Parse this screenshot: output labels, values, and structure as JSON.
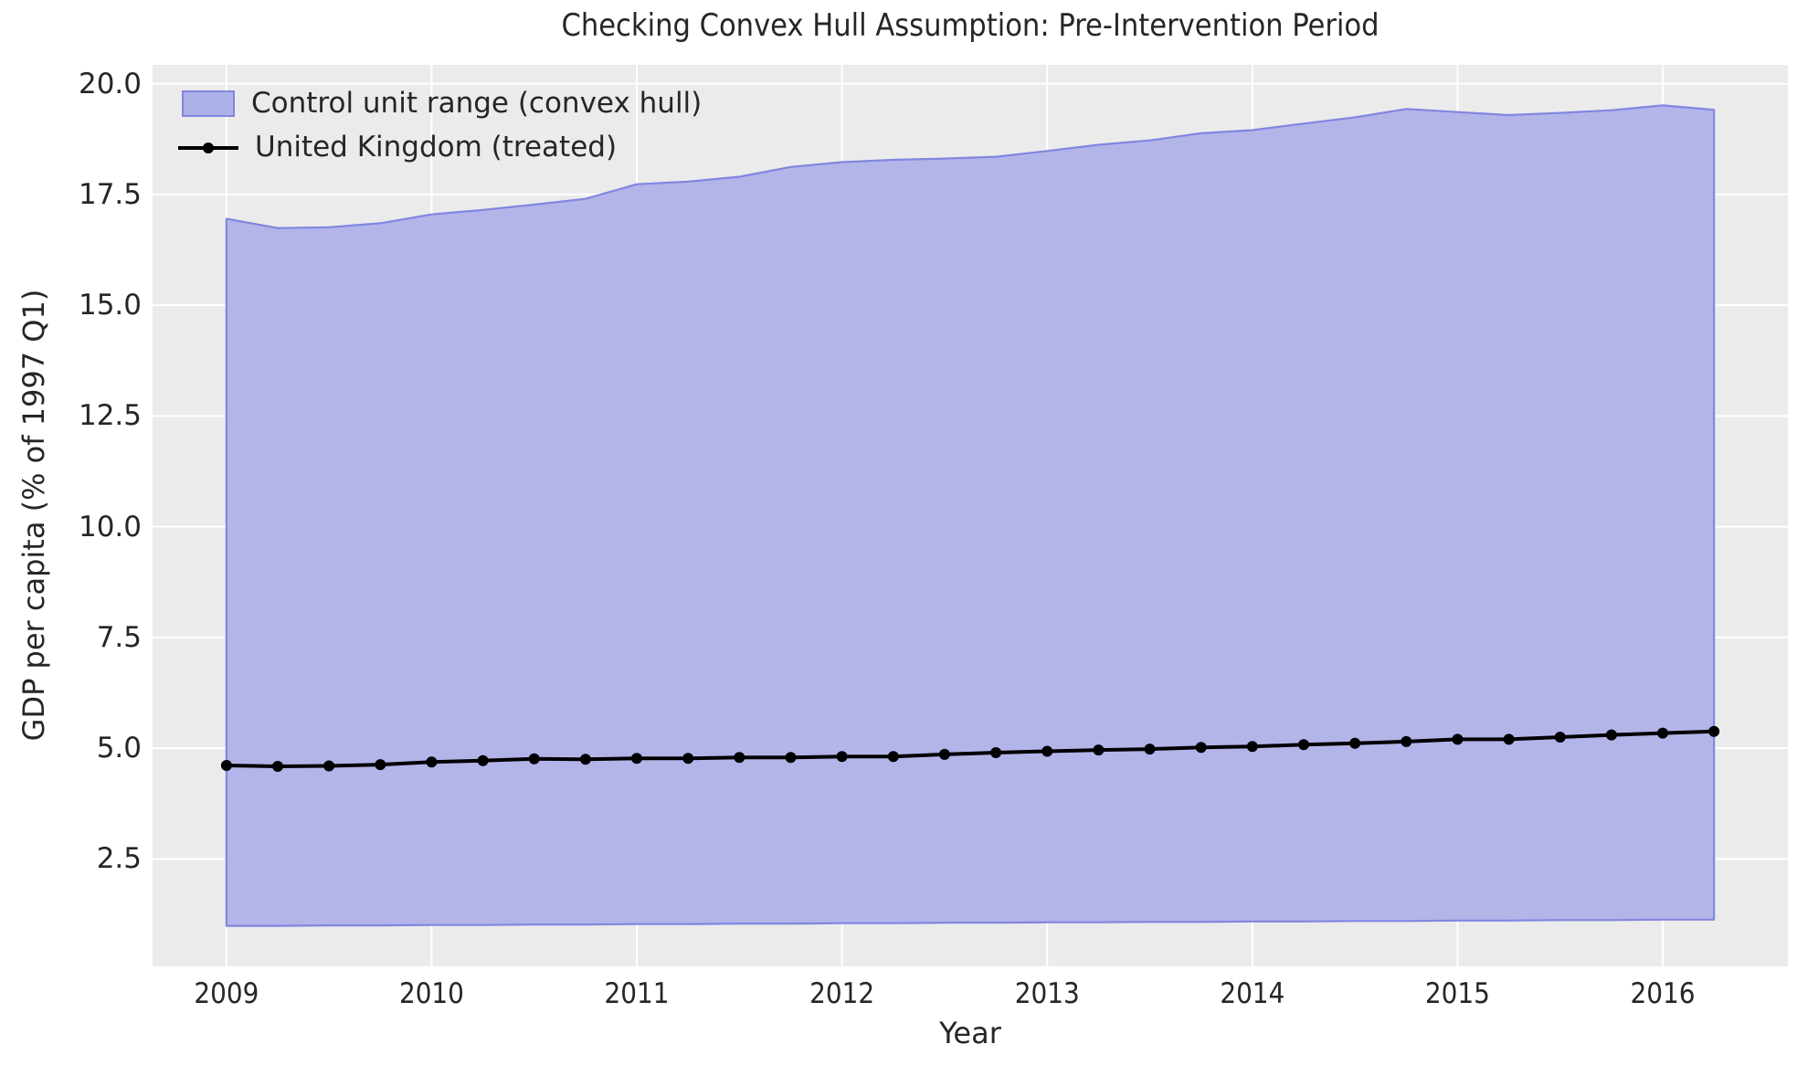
{
  "title": "Checking Convex Hull Assumption: Pre-Intervention Period",
  "axis": {
    "xlabel": "Year",
    "ylabel": "GDP per capita (% of 1997 Q1)"
  },
  "legend": {
    "control_label": "Control unit range (convex hull)",
    "treated_label": "United Kingdom (treated)"
  },
  "colors": {
    "plot_background": "#ebebeb",
    "grid": "#ffffff",
    "band_fill": "#aeb0e8",
    "band_edge": "#8186e0",
    "treated_line": "#000000",
    "text": "#262626"
  },
  "chart_data": {
    "type": "area",
    "title": "Checking Convex Hull Assumption: Pre-Intervention Period",
    "xlabel": "Year",
    "ylabel": "GDP per capita (% of 1997 Q1)",
    "grid": true,
    "legend_position": "upper left",
    "xlim": [
      2008.64,
      2016.61
    ],
    "ylim": [
      0.075,
      20.425
    ],
    "xticks": [
      2009,
      2010,
      2011,
      2012,
      2013,
      2014,
      2015,
      2016
    ],
    "yticks": [
      2.5,
      5.0,
      7.5,
      10.0,
      12.5,
      15.0,
      17.5,
      20.0
    ],
    "x": [
      2009.0,
      2009.25,
      2009.5,
      2009.75,
      2010.0,
      2010.25,
      2010.5,
      2010.75,
      2011.0,
      2011.25,
      2011.5,
      2011.75,
      2012.0,
      2012.25,
      2012.5,
      2012.75,
      2013.0,
      2013.25,
      2013.5,
      2013.75,
      2014.0,
      2014.25,
      2014.5,
      2014.75,
      2015.0,
      2015.25,
      2015.5,
      2015.75,
      2016.0,
      2016.25
    ],
    "series": [
      {
        "name": "Control unit range (convex hull)",
        "kind": "band",
        "upper": [
          16.95,
          16.74,
          16.76,
          16.85,
          17.05,
          17.15,
          17.27,
          17.4,
          17.73,
          17.79,
          17.9,
          18.12,
          18.23,
          18.28,
          18.31,
          18.35,
          18.48,
          18.62,
          18.72,
          18.88,
          18.95,
          19.1,
          19.24,
          19.43,
          19.36,
          19.29,
          19.34,
          19.4,
          19.51,
          19.41
        ],
        "lower": [
          0.99,
          0.99,
          1.0,
          1.0,
          1.01,
          1.01,
          1.02,
          1.02,
          1.03,
          1.03,
          1.04,
          1.04,
          1.05,
          1.05,
          1.06,
          1.06,
          1.07,
          1.07,
          1.08,
          1.08,
          1.09,
          1.09,
          1.1,
          1.1,
          1.11,
          1.11,
          1.12,
          1.12,
          1.13,
          1.13
        ]
      },
      {
        "name": "United Kingdom (treated)",
        "kind": "line_markers",
        "values": [
          4.61,
          4.59,
          4.6,
          4.63,
          4.69,
          4.72,
          4.76,
          4.75,
          4.77,
          4.77,
          4.79,
          4.79,
          4.81,
          4.81,
          4.86,
          4.9,
          4.93,
          4.96,
          4.98,
          5.02,
          5.04,
          5.08,
          5.11,
          5.15,
          5.2,
          5.2,
          5.25,
          5.3,
          5.34,
          5.38
        ]
      }
    ]
  }
}
